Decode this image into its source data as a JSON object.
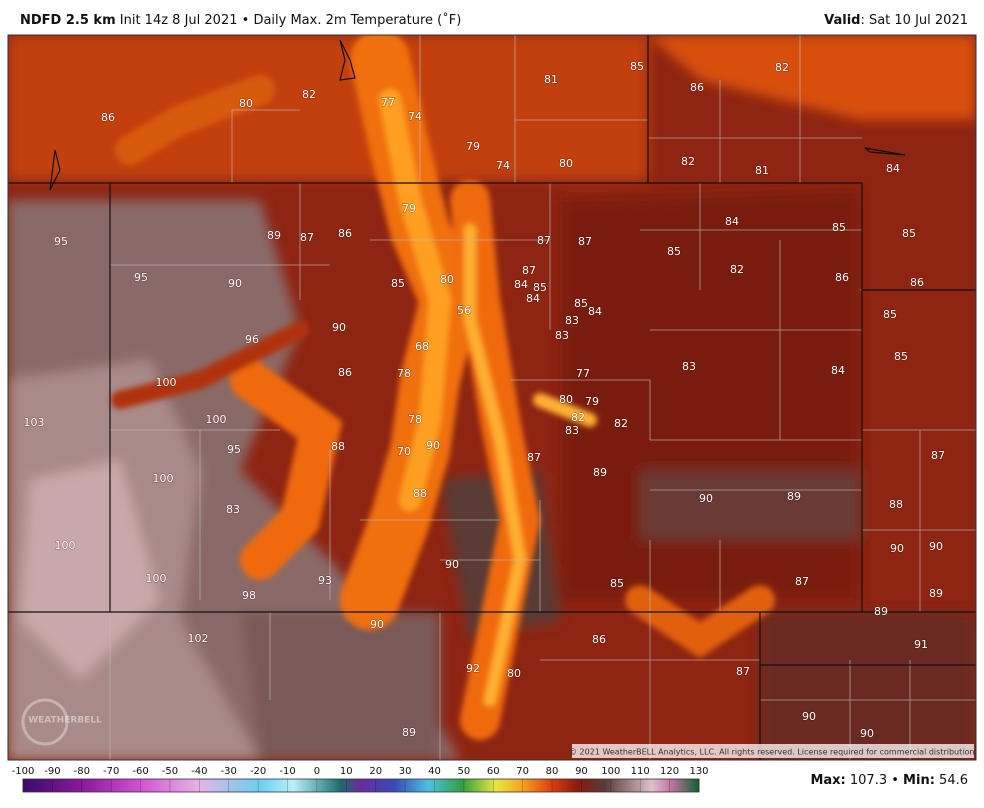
{
  "header": {
    "model": "NDFD 2.5 km",
    "init": "Init 14z 8 Jul 2021",
    "separator": "•",
    "field": "Daily Max. 2m Temperature (˚F)",
    "valid_label": "Valid",
    "valid_date": ": Sat 10 Jul 2021"
  },
  "map_labels": [
    85,
    81,
    82,
    86,
    80,
    82,
    77,
    74,
    86,
    79,
    74,
    80,
    82,
    81,
    84,
    79,
    84,
    85,
    89,
    87,
    86,
    87,
    87,
    85,
    95,
    85,
    82,
    87,
    86,
    95,
    90,
    85,
    80,
    84,
    85,
    84,
    86,
    85,
    84,
    56,
    83,
    85,
    90,
    83,
    96,
    68,
    85,
    77,
    83,
    86,
    78,
    84,
    100,
    80,
    79,
    82,
    83,
    82,
    78,
    103,
    100,
    95,
    88,
    70,
    90,
    87,
    89,
    87,
    90,
    89,
    100,
    88,
    88,
    83,
    100,
    90,
    90,
    90,
    93,
    85,
    87,
    100,
    98,
    89,
    89,
    90,
    86,
    91,
    102,
    92,
    80,
    87,
    90,
    89,
    90
  ],
  "copyright": "© 2021 WeatherBELL Analytics, LLC. All rights reserved. License required for commercial distribution.",
  "logo": "WEATHERBELL",
  "colorbar": {
    "ticks": [
      -100,
      -90,
      -80,
      -70,
      -60,
      -50,
      -40,
      -30,
      -20,
      -10,
      0,
      10,
      20,
      30,
      40,
      50,
      60,
      70,
      80,
      90,
      100,
      110,
      120,
      130
    ]
  },
  "stats": {
    "max_label": "Max:",
    "max": 107.3,
    "separator": "•",
    "min_label": "Min:",
    "min": 54.6
  }
}
